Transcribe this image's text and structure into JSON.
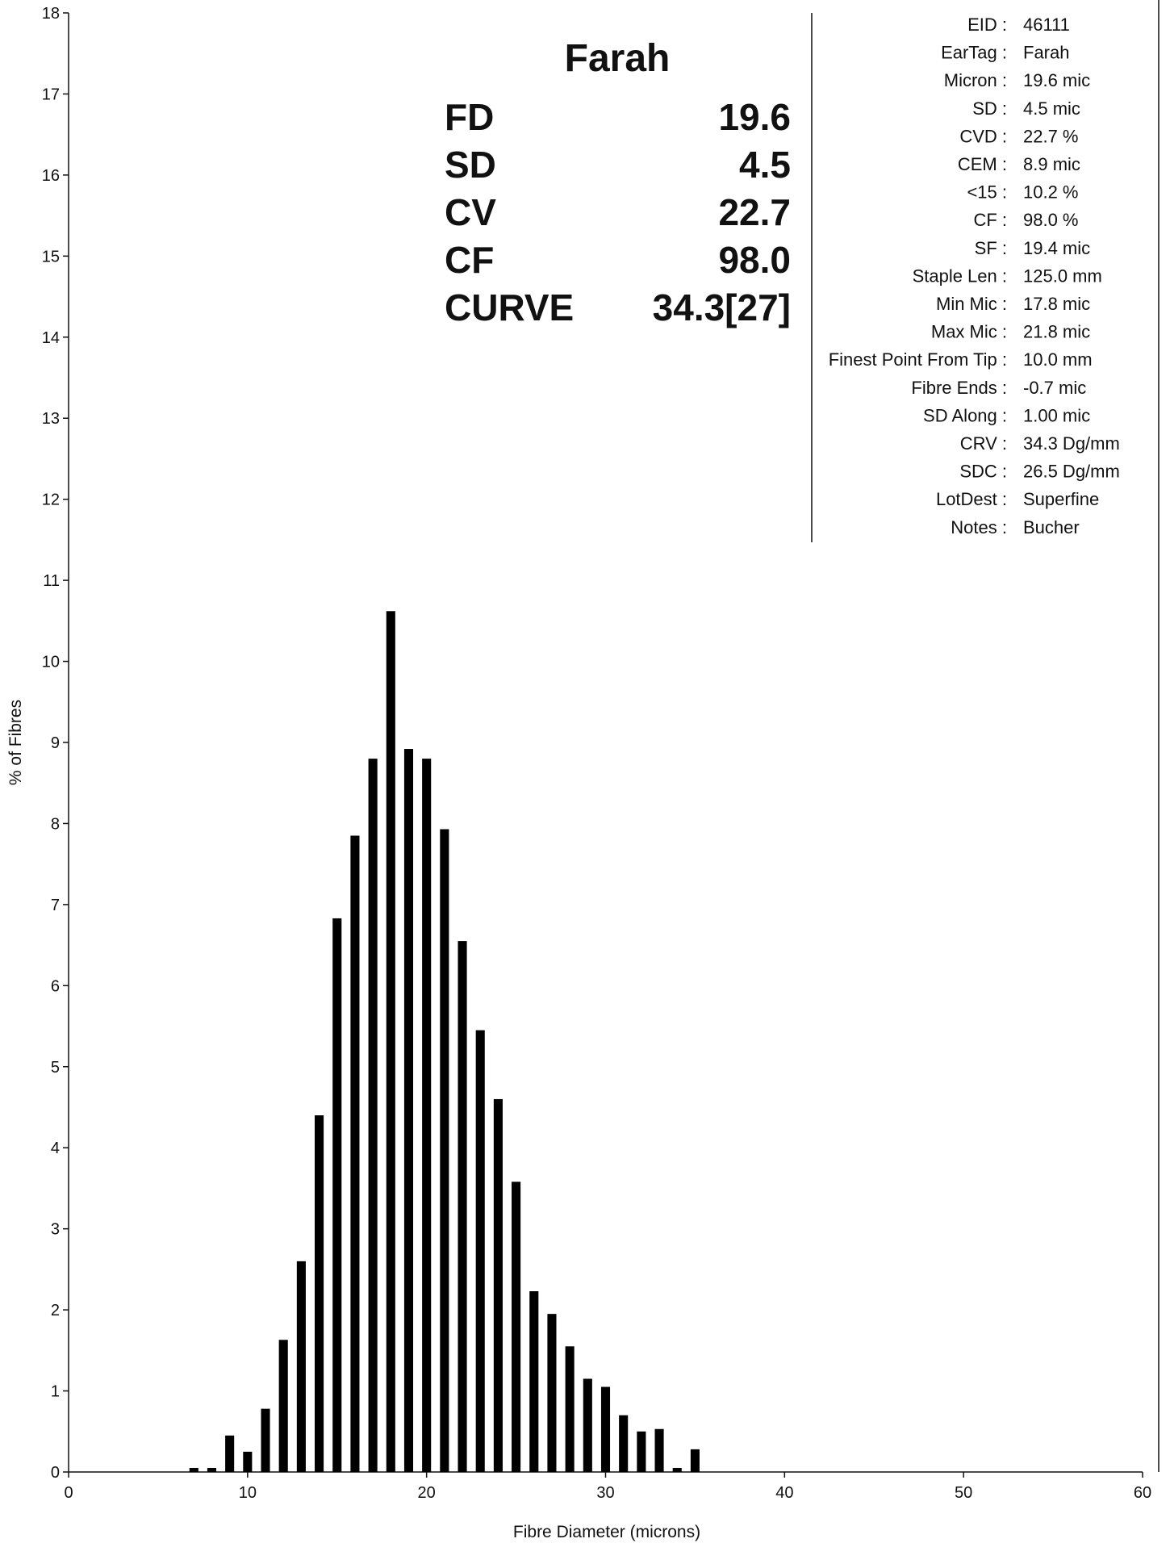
{
  "chart_data": {
    "type": "bar",
    "xlabel": "Fibre Diameter (microns)",
    "ylabel": "% of Fibres",
    "xlim": [
      0,
      60
    ],
    "ylim": [
      0,
      18
    ],
    "x_ticks": [
      "0",
      "10",
      "20",
      "30",
      "40",
      "50",
      "60"
    ],
    "y_ticks": [
      "0",
      "1",
      "2",
      "3",
      "4",
      "5",
      "6",
      "7",
      "8",
      "9",
      "10",
      "11",
      "12",
      "13",
      "14",
      "15",
      "16",
      "17",
      "18"
    ],
    "grid": false,
    "bar_color": "#000000",
    "x": [
      7,
      8,
      9,
      10,
      11,
      12,
      13,
      14,
      15,
      16,
      17,
      18,
      19,
      20,
      21,
      22,
      23,
      24,
      25,
      26,
      27,
      28,
      29,
      30,
      31,
      32,
      33,
      34,
      35
    ],
    "values": [
      0.05,
      0.05,
      0.45,
      0.25,
      0.78,
      1.63,
      2.6,
      4.4,
      6.83,
      7.85,
      8.8,
      10.62,
      8.92,
      8.8,
      7.93,
      6.55,
      5.45,
      4.6,
      3.58,
      2.23,
      1.95,
      1.55,
      1.15,
      1.05,
      0.7,
      0.5,
      0.53,
      0.05,
      0.28
    ]
  },
  "summary": {
    "name": "Farah",
    "stats": [
      {
        "label": "FD",
        "value": "19.6"
      },
      {
        "label": "SD",
        "value": "4.5"
      },
      {
        "label": "CV",
        "value": "22.7"
      },
      {
        "label": "CF",
        "value": "98.0"
      },
      {
        "label": "CURVE",
        "value": "34.3[27]"
      }
    ]
  },
  "info": [
    {
      "label": "EID :",
      "value": "46111"
    },
    {
      "label": "EarTag :",
      "value": "Farah"
    },
    {
      "label": "Micron :",
      "value": "19.6 mic"
    },
    {
      "label": "SD :",
      "value": "4.5 mic"
    },
    {
      "label": "CVD :",
      "value": "22.7 %"
    },
    {
      "label": "CEM :",
      "value": "8.9 mic"
    },
    {
      "label": "<15 :",
      "value": "10.2 %"
    },
    {
      "label": "CF :",
      "value": "98.0 %"
    },
    {
      "label": "SF :",
      "value": "19.4 mic"
    },
    {
      "label": "Staple Len :",
      "value": "125.0 mm"
    },
    {
      "label": "Min Mic :",
      "value": "17.8 mic"
    },
    {
      "label": "Max Mic :",
      "value": "21.8 mic"
    },
    {
      "label": "Finest Point From Tip :",
      "value": "10.0 mm"
    },
    {
      "label": "Fibre Ends :",
      "value": "-0.7 mic"
    },
    {
      "label": "SD Along :",
      "value": "1.00 mic"
    },
    {
      "label": "CRV :",
      "value": "34.3 Dg/mm"
    },
    {
      "label": "SDC :",
      "value": "26.5 Dg/mm"
    },
    {
      "label": "LotDest :",
      "value": "Superfine"
    },
    {
      "label": "Notes :",
      "value": "Bucher"
    }
  ]
}
